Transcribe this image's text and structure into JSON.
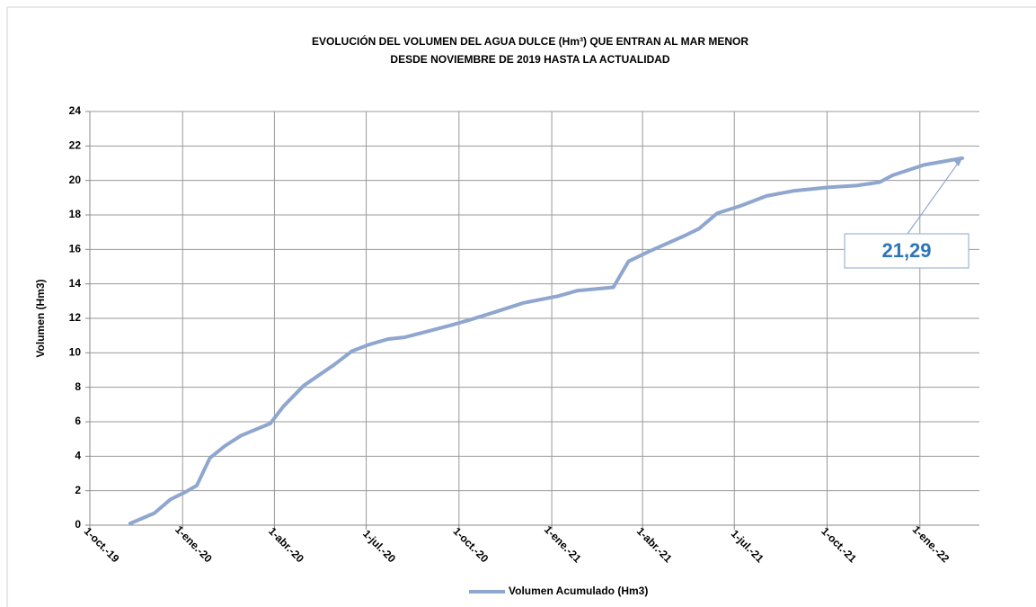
{
  "chart_data": {
    "type": "line",
    "title": "EVOLUCIÓN DEL VOLUMEN DEL AGUA DULCE (Hm³) QUE ENTRAN AL MAR MENOR",
    "subtitle": "DESDE NOVIEMBRE DE 2019 HASTA LA ACTUALIDAD",
    "y_label": "Volumen (Hm3)",
    "x": [
      "2019-11-10",
      "2019-12-04",
      "2019-12-20",
      "2020-01-03",
      "2020-01-15",
      "2020-01-28",
      "2020-02-12",
      "2020-02-28",
      "2020-03-28",
      "2020-04-10",
      "2020-04-30",
      "2020-05-30",
      "2020-06-17",
      "2020-07-05",
      "2020-07-23",
      "2020-08-08",
      "2020-08-28",
      "2020-09-23",
      "2020-10-11",
      "2020-11-02",
      "2020-12-04",
      "2021-01-08",
      "2021-01-26",
      "2021-03-03",
      "2021-03-18",
      "2021-04-08",
      "2021-05-13",
      "2021-05-27",
      "2021-06-14",
      "2021-07-06",
      "2021-08-02",
      "2021-08-29",
      "2021-10-03",
      "2021-10-30",
      "2021-11-22",
      "2021-12-05",
      "2022-01-05",
      "2022-02-12"
    ],
    "series": [
      {
        "name": "Volumen Acumulado (Hm3)",
        "color": "#8fa6cf",
        "values": [
          0.1,
          0.7,
          1.5,
          1.9,
          2.3,
          3.9,
          4.6,
          5.2,
          5.9,
          6.9,
          8.1,
          9.3,
          10.1,
          10.5,
          10.8,
          10.9,
          11.2,
          11.6,
          11.9,
          12.3,
          12.9,
          13.3,
          13.6,
          13.8,
          15.3,
          15.9,
          16.8,
          17.2,
          18.1,
          18.5,
          19.1,
          19.4,
          19.6,
          19.7,
          19.9,
          20.3,
          20.9,
          21.29
        ]
      }
    ],
    "xlim": [
      "2019-10-01",
      "2022-03-01"
    ],
    "xticks": [
      {
        "value": "2019-10-01",
        "label": "1-oct.-19"
      },
      {
        "value": "2020-01-01",
        "label": "1-ene.-20"
      },
      {
        "value": "2020-04-01",
        "label": "1-abr.-20"
      },
      {
        "value": "2020-07-01",
        "label": "1-jul.-20"
      },
      {
        "value": "2020-10-01",
        "label": "1-oct.-20"
      },
      {
        "value": "2021-01-01",
        "label": "1-ene.-21"
      },
      {
        "value": "2021-04-01",
        "label": "1-abr.-21"
      },
      {
        "value": "2021-07-01",
        "label": "1-jul.-21"
      },
      {
        "value": "2021-10-01",
        "label": "1-oct.-21"
      },
      {
        "value": "2022-01-01",
        "label": "1-ene.-22"
      }
    ],
    "ylim": [
      0,
      24
    ],
    "yticks": [
      0,
      2,
      4,
      6,
      8,
      10,
      12,
      14,
      16,
      18,
      20,
      22,
      24
    ],
    "grid": true,
    "legend": "bottom",
    "annotation": "21,29"
  }
}
